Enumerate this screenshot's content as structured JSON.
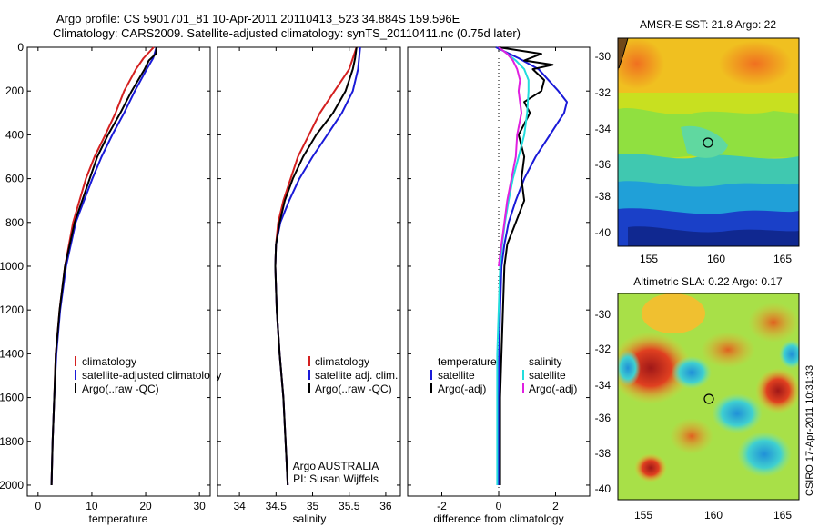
{
  "header": {
    "title_line1": "Argo profile: CS 5901701_81 10-Apr-2011 20110413_523 34.884S 159.596E",
    "title_line2": "Climatology: CARS2009. Satellite-adjusted climatology: synTS_20110411.nc (0.75d later)"
  },
  "side_label": "CSIRO 17-Apr-2011 10:31:33",
  "colors": {
    "climatology": "#d42020",
    "satellite": "#1a1ad8",
    "argo": "#000000",
    "salinity_sat": "#22dddd",
    "salinity_argo": "#e020e0"
  },
  "chart_data": [
    {
      "type": "line",
      "xlabel": "temperature",
      "xlim": [
        -2,
        32
      ],
      "ylim": [
        2050,
        0
      ],
      "xticks": [
        0,
        10,
        20,
        30
      ],
      "yticks": [
        0,
        200,
        400,
        600,
        800,
        1000,
        1200,
        1400,
        1600,
        1800,
        2000
      ],
      "legend": [
        "climatology",
        "satellite-adjusted climatology",
        "Argo(..raw -QC)"
      ],
      "series": [
        {
          "name": "climatology",
          "color": "#d42020",
          "y": [
            0,
            50,
            100,
            200,
            300,
            400,
            500,
            600,
            800,
            1000,
            1200,
            1400,
            1600,
            1800,
            2000
          ],
          "x": [
            21.5,
            19.6,
            18.2,
            16,
            14.4,
            12.5,
            10.5,
            8.9,
            6.5,
            5,
            4,
            3.3,
            3,
            2.7,
            2.5
          ]
        },
        {
          "name": "satellite-adjusted climatology",
          "color": "#1a1ad8",
          "y": [
            0,
            50,
            100,
            200,
            300,
            400,
            500,
            600,
            800,
            1000,
            1200,
            1400,
            1600,
            1800,
            2000
          ],
          "x": [
            22,
            21.4,
            20.2,
            18,
            16,
            13.8,
            11.8,
            10.1,
            7,
            5.2,
            4.1,
            3.4,
            3,
            2.7,
            2.5
          ]
        },
        {
          "name": "Argo(..raw -QC)",
          "color": "#000000",
          "y": [
            0,
            30,
            60,
            100,
            200,
            300,
            400,
            500,
            600,
            800,
            1000,
            1200,
            1400,
            1600,
            1800,
            2000
          ],
          "x": [
            22,
            21.9,
            20.6,
            19.8,
            17.4,
            15.3,
            13,
            11,
            9.6,
            6.8,
            5,
            4,
            3.3,
            3,
            2.7,
            2.5
          ]
        }
      ]
    },
    {
      "type": "line",
      "xlabel": "salinity",
      "xlim": [
        33.7,
        36.2
      ],
      "ylim": [
        2050,
        0
      ],
      "xticks": [
        34,
        34.5,
        35,
        35.5,
        36
      ],
      "legend": [
        "climatology",
        "satellite adj. clim.",
        "Argo(..raw -QC)"
      ],
      "annotation": [
        "Argo AUSTRALIA",
        "PI: Susan Wijffels"
      ],
      "series": [
        {
          "name": "climatology",
          "color": "#d42020",
          "y": [
            0,
            100,
            200,
            300,
            400,
            500,
            600,
            700,
            800,
            900,
            1000,
            1200,
            1400,
            1600,
            1800,
            2000
          ],
          "x": [
            35.6,
            35.5,
            35.3,
            35.1,
            34.95,
            34.8,
            34.7,
            34.6,
            34.53,
            34.5,
            34.49,
            34.51,
            34.55,
            34.6,
            34.63,
            34.66
          ]
        },
        {
          "name": "satellite adj. clim.",
          "color": "#1a1ad8",
          "y": [
            0,
            100,
            200,
            300,
            400,
            500,
            600,
            700,
            800,
            900,
            1000,
            1200,
            1400,
            1600,
            1800,
            2000
          ],
          "x": [
            35.65,
            35.62,
            35.55,
            35.4,
            35.2,
            35,
            34.82,
            34.68,
            34.56,
            34.5,
            34.49,
            34.51,
            34.55,
            34.6,
            34.63,
            34.66
          ]
        },
        {
          "name": "Argo(..raw -QC)",
          "color": "#000000",
          "y": [
            0,
            50,
            100,
            200,
            300,
            400,
            500,
            600,
            700,
            800,
            900,
            1000,
            1200,
            1400,
            1600,
            1800,
            2000
          ],
          "x": [
            35.6,
            35.58,
            35.55,
            35.45,
            35.28,
            35.05,
            34.87,
            34.73,
            34.62,
            34.55,
            34.5,
            34.49,
            34.51,
            34.55,
            34.6,
            34.63,
            34.66
          ]
        }
      ]
    },
    {
      "type": "line",
      "xlabel": "difference from climatology",
      "xlim": [
        -3.2,
        3.2
      ],
      "ylim": [
        2050,
        0
      ],
      "xticks": [
        -2,
        0,
        2
      ],
      "legend_left_title": "temperature",
      "legend_right_title": "salinity",
      "legend_left": [
        "satellite",
        "Argo(-adj)"
      ],
      "legend_right": [
        "satellite",
        "Argo(-adj)"
      ],
      "series": [
        {
          "name": "temperature satellite",
          "color": "#1a1ad8",
          "y": [
            0,
            50,
            100,
            200,
            250,
            300,
            400,
            500,
            600,
            700,
            800,
            900,
            1000,
            1200,
            1400,
            1600,
            1800,
            2000
          ],
          "x": [
            -0.1,
            0.7,
            1.4,
            2.1,
            2.4,
            2.3,
            1.8,
            1.3,
            0.9,
            0.6,
            0.35,
            0.2,
            0.1,
            0.05,
            0.02,
            0,
            0,
            0
          ]
        },
        {
          "name": "temperature Argo(-adj)",
          "color": "#000000",
          "y": [
            0,
            30,
            60,
            80,
            100,
            150,
            200,
            250,
            300,
            400,
            500,
            600,
            700,
            800,
            900,
            1000,
            1200,
            1400,
            1600,
            1800,
            2000
          ],
          "x": [
            0,
            1.5,
            0.9,
            1.9,
            1.2,
            1.6,
            1.5,
            0.9,
            1.1,
            0.7,
            0.9,
            0.8,
            0.9,
            0.6,
            0.3,
            0.2,
            0.15,
            0.1,
            0.05,
            0.05,
            0.05
          ]
        },
        {
          "name": "salinity satellite",
          "color": "#22dddd",
          "y": [
            0,
            30,
            60,
            100,
            150,
            200,
            300,
            400,
            500,
            600,
            700,
            800,
            900,
            1000,
            1200,
            1400,
            1600,
            1800,
            2000
          ],
          "x": [
            0,
            0.3,
            0.6,
            0.9,
            1.05,
            1.05,
            1,
            0.9,
            0.7,
            0.5,
            0.35,
            0.22,
            0.12,
            0.05,
            0,
            -0.05,
            -0.05,
            -0.05,
            -0.05
          ]
        },
        {
          "name": "salinity Argo(-adj)",
          "color": "#e020e0",
          "y": [
            0,
            30,
            60,
            100,
            150,
            200,
            300,
            400,
            500,
            600,
            700,
            800,
            900,
            1000
          ],
          "x": [
            0,
            0.3,
            0.5,
            0.65,
            0.75,
            0.7,
            0.8,
            0.65,
            0.6,
            0.45,
            0.3,
            0.2,
            0.1,
            0
          ]
        }
      ]
    }
  ],
  "maps": [
    {
      "title": "AMSR-E SST: 21.8 Argo: 22",
      "xticks": [
        "155",
        "160",
        "165"
      ],
      "yticks": [
        "-30",
        "-32",
        "-34",
        "-36",
        "-38",
        "-40"
      ]
    },
    {
      "title": "Altimetric SLA: 0.22 Argo: 0.17",
      "xticks": [
        "155",
        "160",
        "165"
      ],
      "yticks": [
        "-30",
        "-32",
        "-34",
        "-36",
        "-38",
        "-40"
      ]
    }
  ]
}
